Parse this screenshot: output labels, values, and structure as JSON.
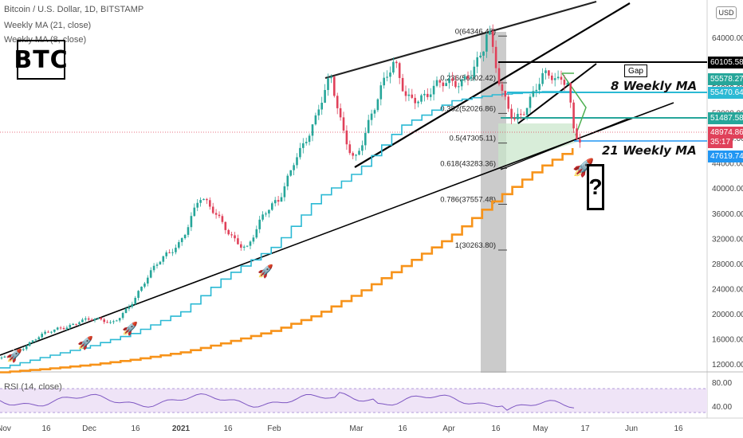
{
  "header": {
    "title": "Bitcoin / U.S. Dollar, 1D, BITSTAMP",
    "ma21_label": "Weekly MA (21, close)",
    "ma8_label": "Weekly MA (8, close)"
  },
  "logo_text": "BTC",
  "currency_button": "USD",
  "annotations": {
    "ma8": "8 Weekly MA",
    "ma21": "21 Weekly MA",
    "gap": "Gap",
    "question": "?"
  },
  "rsi_label": "RSI (14, close)",
  "colors": {
    "up": "#26a69a",
    "down": "#e0415a",
    "ma21": "#f7931a",
    "ma8": "#2bb9d4",
    "fib_zone": "#a0a0a0",
    "fib_fill": "#c8e6c9",
    "rsi_bg": "#efe4f7",
    "tag_black": "#000000",
    "tag_green": "#26a69a",
    "tag_cyan": "#2bb9d4",
    "tag_red": "#e0415a",
    "tag_blue": "#2196f3"
  },
  "chart_data": {
    "type": "line",
    "title": "Bitcoin / U.S. Dollar, 1D, BITSTAMP",
    "y_ticks": [
      "12000.00",
      "16000.00",
      "20000.00",
      "24000.00",
      "28000.00",
      "32000.00",
      "36000.00",
      "40000.00",
      "44000.00",
      "48000.00",
      "52000.00",
      "56000.00",
      "60000.00",
      "64000.00"
    ],
    "x_ticks": [
      "Nov",
      "16",
      "Dec",
      "16",
      "2021",
      "16",
      "Feb",
      "Mar",
      "16",
      "Apr",
      "16",
      "May",
      "17",
      "Jun",
      "16"
    ],
    "ylim": [
      10000,
      67000
    ],
    "series": [
      {
        "name": "Weekly MA (21, close)",
        "color": "#f7931a",
        "x": [
          "2020-11-01",
          "2020-11-15",
          "2020-12-01",
          "2020-12-15",
          "2021-01-01",
          "2021-01-15",
          "2021-02-01",
          "2021-02-15",
          "2021-03-01",
          "2021-03-15",
          "2021-04-01",
          "2021-04-15",
          "2021-05-01",
          "2021-05-12"
        ],
        "values": [
          10800,
          11300,
          12000,
          12800,
          14000,
          15500,
          17500,
          20000,
          23500,
          27500,
          32500,
          38000,
          43500,
          46500
        ]
      },
      {
        "name": "Weekly MA (8, close)",
        "color": "#2bb9d4",
        "x": [
          "2020-11-01",
          "2020-11-15",
          "2020-12-01",
          "2020-12-15",
          "2021-01-01",
          "2021-01-15",
          "2021-02-01",
          "2021-02-15",
          "2021-03-01",
          "2021-03-15",
          "2021-04-01",
          "2021-04-15",
          "2021-05-01",
          "2021-05-12"
        ],
        "values": [
          11500,
          13200,
          15000,
          17000,
          20500,
          26000,
          31000,
          38500,
          43000,
          50000,
          54000,
          55000,
          55500,
          55470
        ]
      }
    ],
    "fib_levels": [
      {
        "label": "0(64346.42)",
        "value": 64346.42
      },
      {
        "label": "0.236(56902.42)",
        "value": 56902.42
      },
      {
        "label": "0.382(52026.86)",
        "value": 52026.86
      },
      {
        "label": "0.5(47305.11)",
        "value": 47305.11
      },
      {
        "label": "0.618(43283.36)",
        "value": 43283.36
      },
      {
        "label": "0.786(37557.48)",
        "value": 37557.48
      },
      {
        "label": "1(30263.80)",
        "value": 30263.8
      }
    ],
    "price_tags": [
      {
        "label": "60105.58",
        "value": 60105.58,
        "color": "#000000"
      },
      {
        "label": "55578.27",
        "value": 55578.27,
        "color": "#26a69a"
      },
      {
        "label": "55470.64",
        "value": 55470.64,
        "color": "#2bb9d4"
      },
      {
        "label": "51487.58",
        "value": 51487.58,
        "color": "#26a69a"
      },
      {
        "label": "48974.86",
        "value": 48974.86,
        "color": "#e0415a"
      },
      {
        "label": "35:17",
        "value": 47700,
        "color": "#e0415a"
      },
      {
        "label": "47619.74",
        "value": 47619.74,
        "color": "#2196f3"
      }
    ],
    "rsi_ticks": [
      "80.00",
      "40.00"
    ]
  }
}
